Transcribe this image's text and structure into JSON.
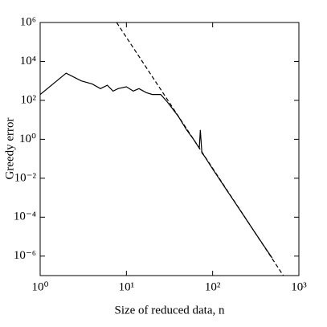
{
  "chart_data": {
    "type": "line",
    "xlabel": "Size of reduced data, n",
    "ylabel": "Greedy error",
    "xscale": "log",
    "yscale": "log",
    "xlim": [
      1,
      1000
    ],
    "ylim": [
      1e-07,
      1000000
    ],
    "xticks": [
      {
        "value": 1,
        "label": "10⁰"
      },
      {
        "value": 10,
        "label": "10¹"
      },
      {
        "value": 100,
        "label": "10²"
      },
      {
        "value": 1000,
        "label": "10³"
      }
    ],
    "yticks": [
      {
        "value": 1e-06,
        "label": "10⁻⁶"
      },
      {
        "value": 0.0001,
        "label": "10⁻⁴"
      },
      {
        "value": 0.01,
        "label": "10⁻²"
      },
      {
        "value": 1,
        "label": "10⁰"
      },
      {
        "value": 100,
        "label": "10²"
      },
      {
        "value": 10000,
        "label": "10⁴"
      },
      {
        "value": 1000000,
        "label": "10⁶"
      }
    ],
    "series": [
      {
        "color": "#000000",
        "dash": false,
        "x": [
          1,
          2,
          3,
          4,
          5,
          6,
          7,
          8,
          10,
          12,
          14,
          17,
          20,
          25,
          30,
          40,
          50,
          60,
          70,
          72,
          75,
          80,
          100,
          150,
          200,
          300,
          400,
          490
        ],
        "values": [
          200,
          2500,
          1000,
          700,
          400,
          600,
          300,
          400,
          500,
          300,
          400,
          250,
          200,
          200,
          80,
          15,
          3,
          1,
          0.35,
          3,
          0.2,
          0.14,
          0.03,
          0.002,
          0.0003,
          2e-05,
          3e-06,
          8e-07
        ]
      },
      {
        "color": "#000000",
        "dash": true,
        "x": [
          7.7,
          660
        ],
        "values": [
          1000000,
          1e-07
        ]
      }
    ]
  }
}
